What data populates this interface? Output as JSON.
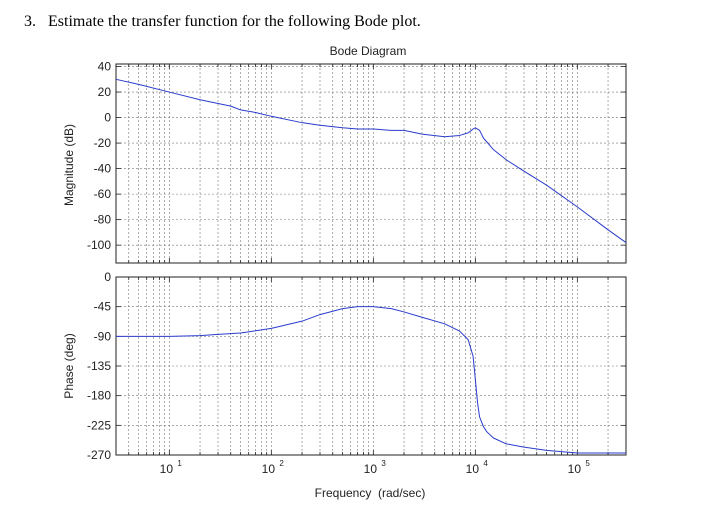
{
  "question": {
    "number": "3.",
    "text": "Estimate the transfer function for the following Bode plot."
  },
  "chart_data": {
    "type": "line",
    "title": "Bode Diagram",
    "xlabel": "Frequency  (rad/sec)",
    "x_scale": "log",
    "xlim": [
      3,
      300000
    ],
    "x_ticks": [
      {
        "value": 10,
        "base": "10",
        "exp": "1"
      },
      {
        "value": 100,
        "base": "10",
        "exp": "2"
      },
      {
        "value": 1000,
        "base": "10",
        "exp": "3"
      },
      {
        "value": 10000,
        "base": "10",
        "exp": "4"
      },
      {
        "value": 100000,
        "base": "10",
        "exp": "5"
      }
    ],
    "grid": true,
    "line_color": "#2a3ccc",
    "panels": [
      {
        "ylabel": "Magnitude (dB)",
        "ylim": [
          -114,
          42
        ],
        "y_ticks": [
          40,
          20,
          0,
          -20,
          -40,
          -60,
          -80,
          -100
        ],
        "series": [
          {
            "x": [
              3,
              5,
              10,
              20,
              40,
              50,
              70,
              100,
              200,
              300,
              500,
              700,
              1000,
              1500,
              2000,
              3000,
              5000,
              7000,
              8500,
              9500,
              10000,
              11000,
              12000,
              15000,
              20000,
              30000,
              50000,
              100000,
              200000,
              300000
            ],
            "y": [
              30,
              26,
              20,
              14,
              9,
              6,
              4,
              1,
              -4,
              -6,
              -8,
              -9,
              -9,
              -10,
              -10,
              -13,
              -15,
              -14,
              -12,
              -9,
              -8,
              -10,
              -16,
              -25,
              -33,
              -42,
              -53,
              -70,
              -88,
              -98
            ]
          }
        ]
      },
      {
        "ylabel": "Phase (deg)",
        "ylim": [
          -270,
          0
        ],
        "y_ticks": [
          0,
          -45,
          -90,
          -135,
          -180,
          -225,
          -270
        ],
        "series": [
          {
            "x": [
              3,
              5,
              10,
              20,
              30,
              50,
              100,
              200,
              300,
              500,
              700,
              1000,
              1500,
              2000,
              3000,
              5000,
              7000,
              8500,
              9500,
              10000,
              10500,
              11000,
              12000,
              13000,
              15000,
              20000,
              30000,
              50000,
              100000,
              200000,
              300000
            ],
            "y": [
              -90,
              -90,
              -90,
              -89,
              -87,
              -85,
              -78,
              -67,
              -57,
              -48,
              -45,
              -45,
              -48,
              -53,
              -61,
              -71,
              -82,
              -95,
              -120,
              -155,
              -190,
              -212,
              -227,
              -235,
              -244,
              -253,
              -258,
              -263,
              -267,
              -267,
              -267
            ]
          }
        ]
      }
    ]
  }
}
